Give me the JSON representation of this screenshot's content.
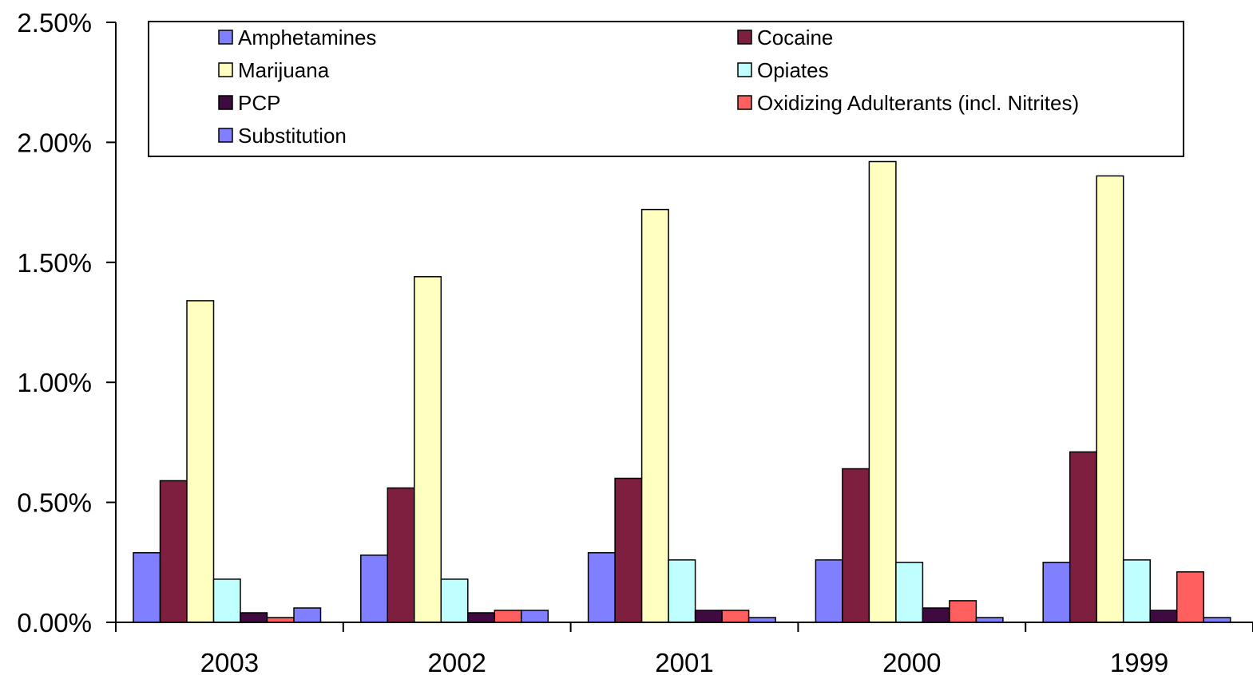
{
  "chart_data": {
    "type": "bar",
    "title": "",
    "xlabel": "",
    "ylabel": "",
    "categories": [
      "2003",
      "2002",
      "2001",
      "2000",
      "1999"
    ],
    "ylim": [
      0,
      0.025
    ],
    "yticks": [
      {
        "value": 0.0,
        "label": "0.00%"
      },
      {
        "value": 0.005,
        "label": "0.50%"
      },
      {
        "value": 0.01,
        "label": "1.00%"
      },
      {
        "value": 0.015,
        "label": "1.50%"
      },
      {
        "value": 0.02,
        "label": "2.00%"
      },
      {
        "value": 0.025,
        "label": "2.50%"
      }
    ],
    "grid": false,
    "legend_position": "top",
    "series": [
      {
        "name": "Amphetamines",
        "color": "#7f7fff",
        "values": [
          0.0029,
          0.0028,
          0.0029,
          0.0026,
          0.0025
        ]
      },
      {
        "name": "Cocaine",
        "color": "#7f1f3f",
        "values": [
          0.0059,
          0.0056,
          0.006,
          0.0064,
          0.0071
        ]
      },
      {
        "name": "Marijuana",
        "color": "#ffffbf",
        "values": [
          0.0134,
          0.0144,
          0.0172,
          0.0192,
          0.0186
        ]
      },
      {
        "name": "Opiates",
        "color": "#bfffff",
        "values": [
          0.0018,
          0.0018,
          0.0026,
          0.0025,
          0.0026
        ]
      },
      {
        "name": "PCP",
        "color": "#3f0a3f",
        "values": [
          0.0004,
          0.0004,
          0.0005,
          0.0006,
          0.0005
        ]
      },
      {
        "name": "Oxidizing Adulterants (incl. Nitrites)",
        "color": "#ff5f5f",
        "values": [
          0.0002,
          0.0005,
          0.0005,
          0.0009,
          0.0021
        ]
      },
      {
        "name": "Substitution",
        "color": "#7f7fff",
        "values": [
          0.0006,
          0.0005,
          0.0002,
          0.0002,
          0.0002
        ]
      }
    ]
  }
}
